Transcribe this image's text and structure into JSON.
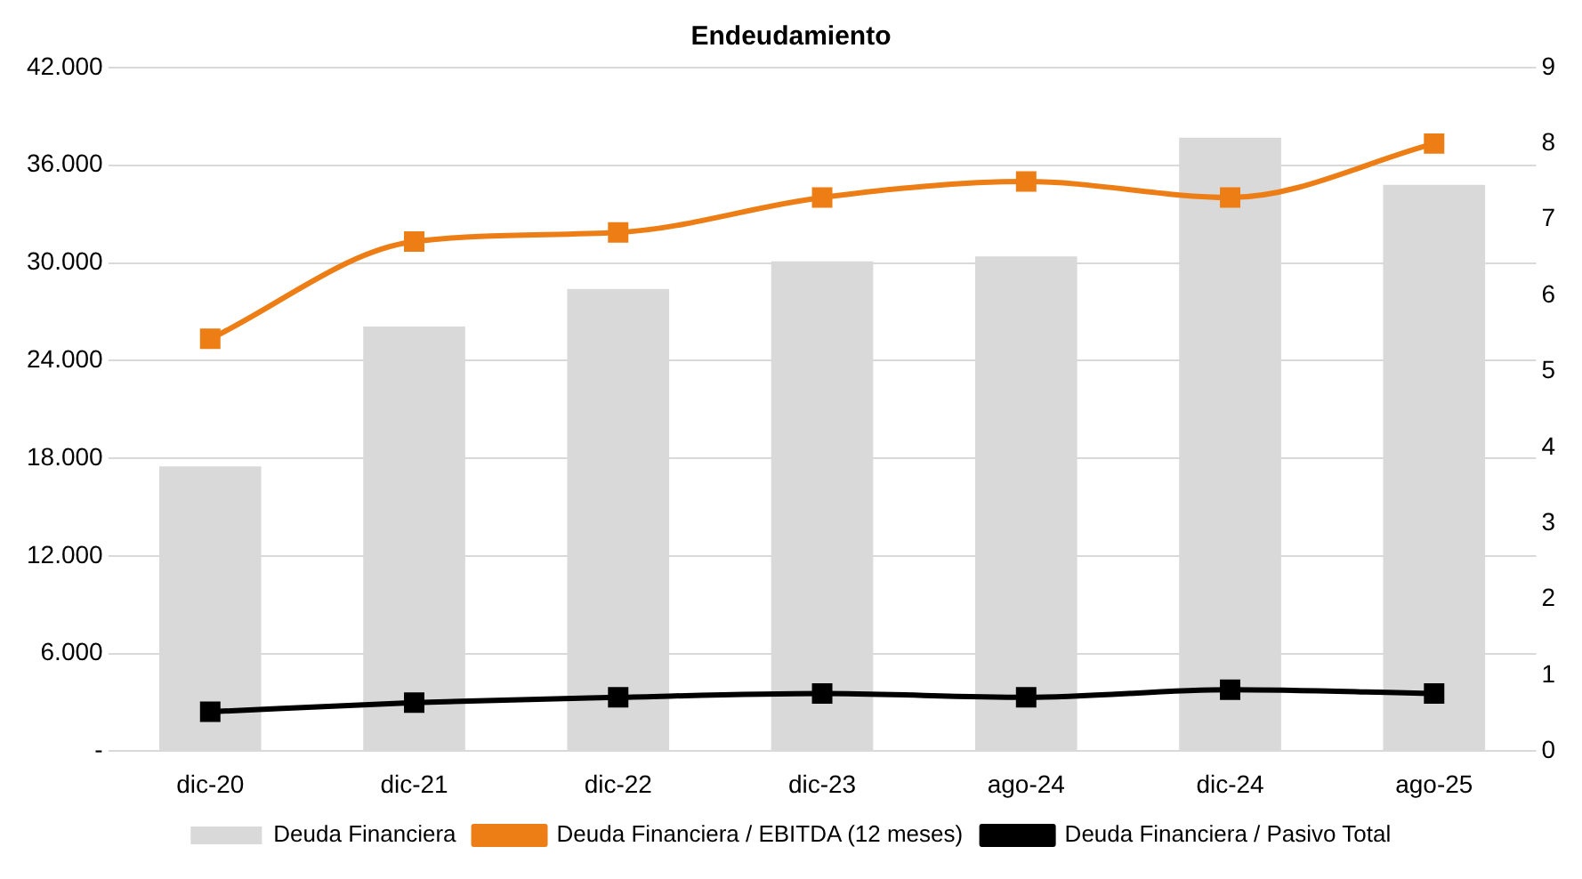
{
  "chart_data": {
    "type": "bar",
    "title": "Endeudamiento",
    "categories": [
      "dic-20",
      "dic-21",
      "dic-22",
      "dic-23",
      "ago-24",
      "dic-24",
      "ago-25"
    ],
    "series": [
      {
        "name": "Deuda Financiera",
        "color": "#d9d9d9",
        "values": [
          17500,
          26100,
          28400,
          30100,
          30400,
          37700,
          34800
        ]
      },
      {
        "name": "Deuda Financiera / EBITDA (12 meses)",
        "type": "line",
        "axis": "y2",
        "color": "#ed7d15",
        "values": [
          5.43,
          6.71,
          6.83,
          7.29,
          7.5,
          7.29,
          8.0
        ]
      },
      {
        "name": "Deuda Financiera / Pasivo Total",
        "type": "line",
        "axis": "y2",
        "color": "#000000",
        "values": [
          0.52,
          0.64,
          0.71,
          0.76,
          0.71,
          0.81,
          0.76
        ]
      }
    ],
    "ylim": [
      0,
      42000
    ],
    "yticks": [
      {
        "value": 0,
        "label": "-"
      },
      {
        "value": 6000,
        "label": "6.000"
      },
      {
        "value": 12000,
        "label": "12.000"
      },
      {
        "value": 18000,
        "label": "18.000"
      },
      {
        "value": 24000,
        "label": "24.000"
      },
      {
        "value": 30000,
        "label": "30.000"
      },
      {
        "value": 36000,
        "label": "36.000"
      },
      {
        "value": 42000,
        "label": "42.000"
      }
    ],
    "y2lim": [
      0,
      9
    ],
    "y2ticks": [
      0,
      1,
      2,
      3,
      4,
      5,
      6,
      7,
      8,
      9
    ],
    "grid": "y",
    "legend": "bottom",
    "marker": "square",
    "line_style": "solid"
  }
}
